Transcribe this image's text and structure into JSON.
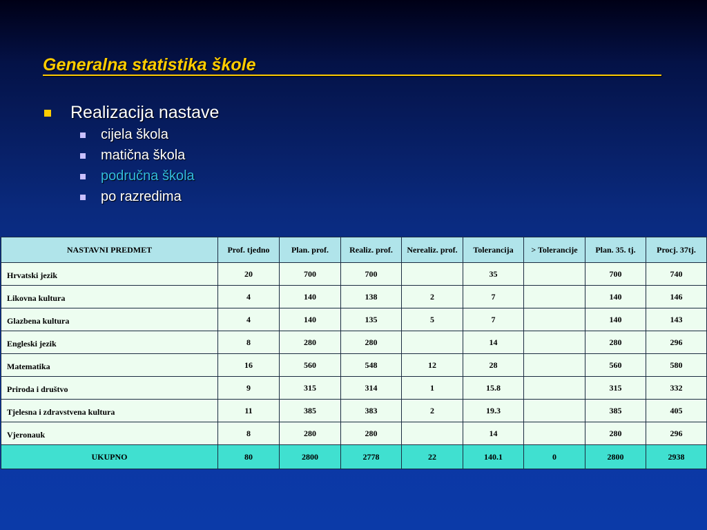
{
  "slide": {
    "title": "Generalna statistika škole",
    "bullet": "Realizacija nastave",
    "sub_bullets": [
      "cijela škola",
      "matična škola",
      "područna škola",
      "po razredima"
    ]
  },
  "colors": {
    "title": "#ffcc00",
    "highlight": "#33bbdd",
    "header_bg": "#b0e4ea",
    "total_bg": "#40e0d0"
  },
  "table": {
    "headers": [
      "NASTAVNI PREDMET",
      "Prof. tjedno",
      "Plan. prof.",
      "Realiz. prof.",
      "Nerealiz. prof.",
      "Tolerancija",
      "> Tolerancije",
      "Plan. 35. tj.",
      "Procj. 37tj."
    ],
    "rows": [
      [
        "Hrvatski jezik",
        "20",
        "700",
        "700",
        "",
        "35",
        "",
        "700",
        "740"
      ],
      [
        "Likovna kultura",
        "4",
        "140",
        "138",
        "2",
        "7",
        "",
        "140",
        "146"
      ],
      [
        "Glazbena kultura",
        "4",
        "140",
        "135",
        "5",
        "7",
        "",
        "140",
        "143"
      ],
      [
        "Engleski jezik",
        "8",
        "280",
        "280",
        "",
        "14",
        "",
        "280",
        "296"
      ],
      [
        "Matematika",
        "16",
        "560",
        "548",
        "12",
        "28",
        "",
        "560",
        "580"
      ],
      [
        "Priroda i društvo",
        "9",
        "315",
        "314",
        "1",
        "15.8",
        "",
        "315",
        "332"
      ],
      [
        "Tjelesna i zdravstvena kultura",
        "11",
        "385",
        "383",
        "2",
        "19.3",
        "",
        "385",
        "405"
      ],
      [
        "Vjeronauk",
        "8",
        "280",
        "280",
        "",
        "14",
        "",
        "280",
        "296"
      ]
    ],
    "total": [
      "UKUPNO",
      "80",
      "2800",
      "2778",
      "22",
      "140.1",
      "0",
      "2800",
      "2938"
    ]
  }
}
